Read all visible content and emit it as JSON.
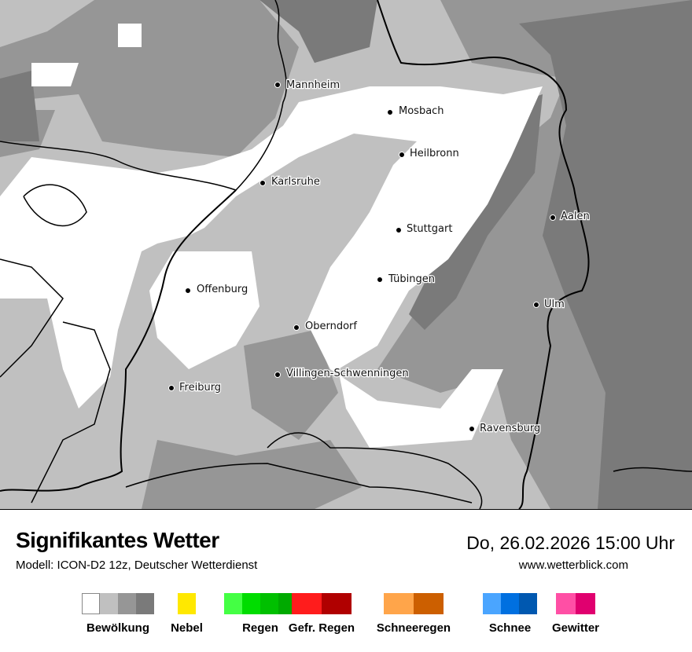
{
  "header": {
    "title": "Signifikantes Wetter",
    "model": "Modell: ICON-D2 12z, Deutscher Wetterdienst",
    "datetime": "Do, 26.02.2026 15:00 Uhr",
    "website": "www.wetterblick.com"
  },
  "cities": [
    {
      "name": "Mannheim"
    },
    {
      "name": "Mosbach"
    },
    {
      "name": "Heilbronn"
    },
    {
      "name": "Karlsruhe"
    },
    {
      "name": "Aalen"
    },
    {
      "name": "Stuttgart"
    },
    {
      "name": "Tübingen"
    },
    {
      "name": "Offenburg"
    },
    {
      "name": "Ulm"
    },
    {
      "name": "Oberndorf"
    },
    {
      "name": "Villingen-Schwenningen"
    },
    {
      "name": "Freiburg"
    },
    {
      "name": "Ravensburg"
    }
  ],
  "legend": [
    {
      "label": "Bewölkung",
      "colors": [
        "#ffffff",
        "#c0c0c0",
        "#969696",
        "#7a7a7a"
      ]
    },
    {
      "label": "Nebel",
      "colors": [
        "#ffe800"
      ]
    },
    {
      "label": "Regen",
      "colors": [
        "#44ff44",
        "#00dd00",
        "#00c000",
        "#00aa00"
      ]
    },
    {
      "label": "Gefr. Regen",
      "colors": [
        "#ff1c1c",
        "#b00000"
      ]
    },
    {
      "label": "Schneeregen",
      "colors": [
        "#ffa54a",
        "#cc5f00"
      ]
    },
    {
      "label": "Schnee",
      "colors": [
        "#4aa5ff",
        "#0070e0",
        "#0058b0"
      ]
    },
    {
      "label": "Gewitter",
      "colors": [
        "#ff4fa5",
        "#e0006f"
      ]
    }
  ]
}
